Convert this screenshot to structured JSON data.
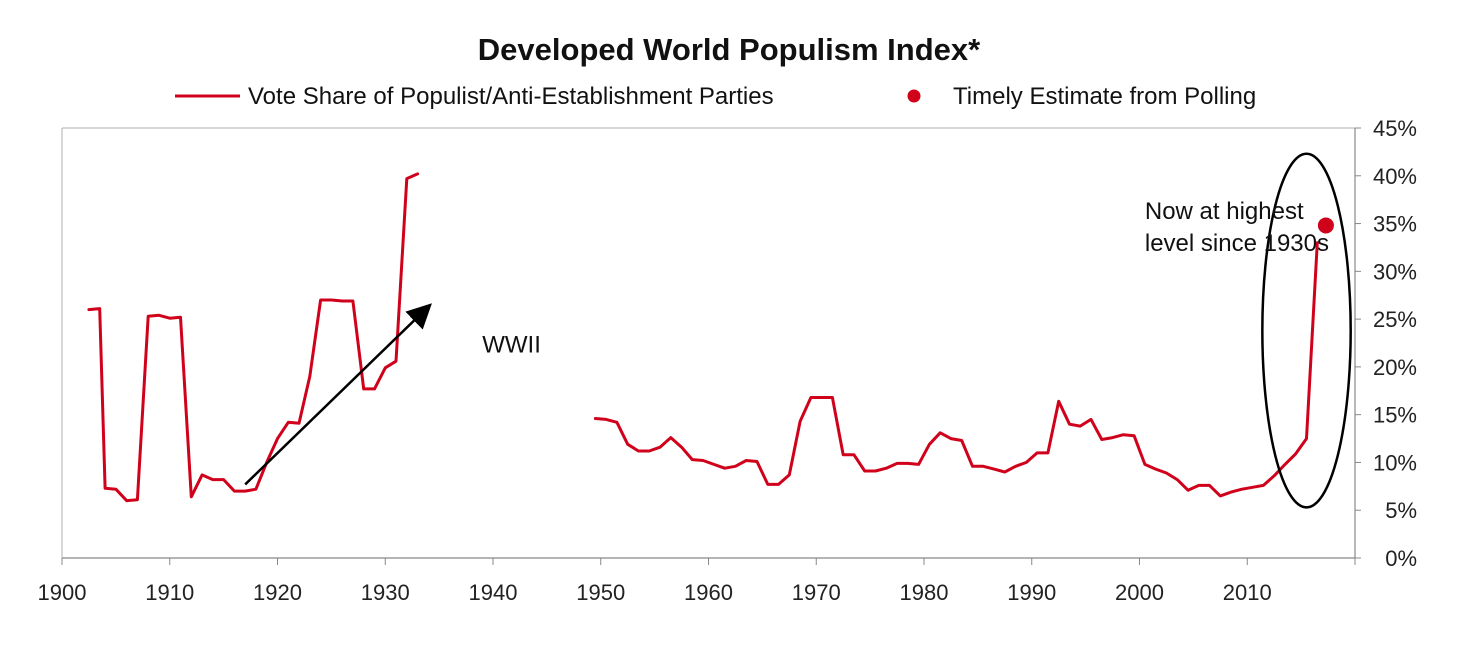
{
  "chart_data": {
    "type": "line",
    "title": "Developed World Populism Index*",
    "xlabel": "",
    "ylabel": "",
    "xlim": [
      1900,
      2020
    ],
    "ylim": [
      0,
      45
    ],
    "x_ticks": [
      "1900",
      "1910",
      "1920",
      "1930",
      "1940",
      "1950",
      "1960",
      "1970",
      "1980",
      "1990",
      "2000",
      "2010"
    ],
    "y_ticks": [
      "0%",
      "5%",
      "10%",
      "15%",
      "20%",
      "25%",
      "30%",
      "35%",
      "40%",
      "45%"
    ],
    "y_axis_side": "right",
    "grid": false,
    "legend_position": "top",
    "colors": {
      "series": "#d0021b",
      "text": "#111111",
      "axis": "#888888",
      "ellipse": "#000000",
      "arrow": "#000000"
    },
    "series": [
      {
        "name": "Vote Share of Populist/Anti-Establishment Parties",
        "style": "line",
        "segments": [
          [
            [
              1902.5,
              26.0
            ],
            [
              1903.5,
              26.1
            ],
            [
              1904,
              7.3
            ],
            [
              1905,
              7.2
            ],
            [
              1906,
              6.0
            ],
            [
              1907,
              6.1
            ],
            [
              1908,
              25.3
            ],
            [
              1909,
              25.4
            ],
            [
              1910,
              25.1
            ],
            [
              1911,
              25.2
            ],
            [
              1912,
              6.4
            ],
            [
              1913,
              8.7
            ],
            [
              1914,
              8.2
            ],
            [
              1915,
              8.2
            ],
            [
              1916,
              7.0
            ],
            [
              1917,
              7.0
            ],
            [
              1918,
              7.2
            ],
            [
              1919,
              10.0
            ],
            [
              1920,
              12.5
            ],
            [
              1921,
              14.2
            ],
            [
              1922,
              14.1
            ],
            [
              1923,
              19.0
            ],
            [
              1924,
              27.0
            ],
            [
              1925,
              27.0
            ],
            [
              1926,
              26.9
            ],
            [
              1927,
              26.9
            ],
            [
              1928,
              17.7
            ],
            [
              1929,
              17.7
            ],
            [
              1930,
              19.9
            ],
            [
              1931,
              20.6
            ],
            [
              1932,
              39.7
            ],
            [
              1933,
              40.2
            ]
          ],
          [
            [
              1949.5,
              14.6
            ],
            [
              1950.5,
              14.5
            ],
            [
              1951.5,
              14.2
            ],
            [
              1952.5,
              11.9
            ],
            [
              1953.5,
              11.2
            ],
            [
              1954.5,
              11.2
            ],
            [
              1955.5,
              11.6
            ],
            [
              1956.5,
              12.6
            ],
            [
              1957.5,
              11.6
            ],
            [
              1958.5,
              10.3
            ],
            [
              1959.5,
              10.2
            ],
            [
              1960.5,
              9.8
            ],
            [
              1961.5,
              9.4
            ],
            [
              1962.5,
              9.6
            ],
            [
              1963.5,
              10.2
            ],
            [
              1964.5,
              10.1
            ],
            [
              1965.5,
              7.7
            ],
            [
              1966.5,
              7.7
            ],
            [
              1967.5,
              8.7
            ],
            [
              1968.5,
              14.3
            ],
            [
              1969.5,
              16.8
            ],
            [
              1970.5,
              16.8
            ],
            [
              1971.5,
              16.8
            ],
            [
              1972.5,
              10.8
            ],
            [
              1973.5,
              10.8
            ],
            [
              1974.5,
              9.1
            ],
            [
              1975.5,
              9.1
            ],
            [
              1976.5,
              9.4
            ],
            [
              1977.5,
              9.9
            ],
            [
              1978.5,
              9.9
            ],
            [
              1979.5,
              9.8
            ],
            [
              1980.5,
              11.9
            ],
            [
              1981.5,
              13.1
            ],
            [
              1982.5,
              12.5
            ],
            [
              1983.5,
              12.3
            ],
            [
              1984.5,
              9.6
            ],
            [
              1985.5,
              9.6
            ],
            [
              1986.5,
              9.3
            ],
            [
              1987.5,
              9.0
            ],
            [
              1988.5,
              9.6
            ],
            [
              1989.5,
              10.0
            ],
            [
              1990.5,
              11.0
            ],
            [
              1991.5,
              11.0
            ],
            [
              1992.5,
              16.4
            ],
            [
              1993.5,
              14.0
            ],
            [
              1994.5,
              13.8
            ],
            [
              1995.5,
              14.5
            ],
            [
              1996.5,
              12.4
            ],
            [
              1997.5,
              12.6
            ],
            [
              1998.5,
              12.9
            ],
            [
              1999.5,
              12.8
            ],
            [
              2000.5,
              9.8
            ],
            [
              2001.5,
              9.3
            ],
            [
              2002.5,
              8.9
            ],
            [
              2003.5,
              8.2
            ],
            [
              2004.5,
              7.1
            ],
            [
              2005.5,
              7.6
            ],
            [
              2006.5,
              7.6
            ],
            [
              2007.5,
              6.5
            ],
            [
              2008.5,
              6.9
            ],
            [
              2009.5,
              7.2
            ],
            [
              2010.5,
              7.4
            ],
            [
              2011.5,
              7.6
            ],
            [
              2012.5,
              8.6
            ],
            [
              2013.5,
              9.8
            ],
            [
              2014.5,
              10.9
            ],
            [
              2015.5,
              12.5
            ],
            [
              2016.5,
              33.0
            ]
          ]
        ]
      },
      {
        "name": "Timely Estimate from Polling",
        "style": "point",
        "points": [
          [
            2017.3,
            34.8
          ]
        ]
      }
    ],
    "annotations": [
      {
        "text": "WWII",
        "x": 1939,
        "y": 21.5
      },
      {
        "text_lines": [
          "Now at highest",
          "level since 1930s"
        ],
        "x": 2000.5,
        "y": 35.5
      }
    ],
    "arrow": {
      "from": [
        1917,
        7.7
      ],
      "to": [
        1934,
        26.3
      ]
    },
    "ellipse": {
      "center": [
        2015.5,
        23.8
      ],
      "radius_x": 4.1,
      "radius_y": 18.5
    }
  }
}
